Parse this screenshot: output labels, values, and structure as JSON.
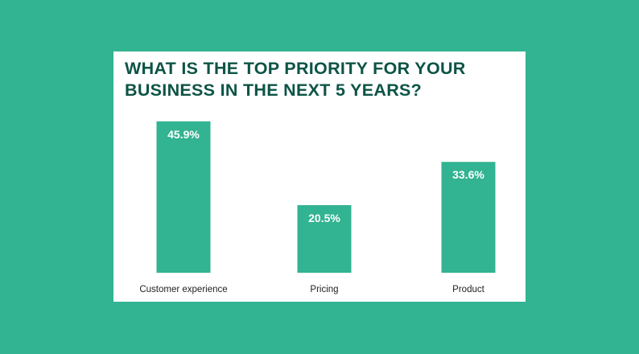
{
  "colors": {
    "background": "#32b391",
    "bar": "#32b391",
    "title": "#0d5446"
  },
  "chart_data": {
    "type": "bar",
    "title": "WHAT IS THE TOP PRIORITY FOR YOUR BUSINESS IN THE NEXT 5 YEARS?",
    "categories": [
      "Customer experience",
      "Pricing",
      "Product"
    ],
    "values": [
      45.9,
      20.5,
      33.6
    ],
    "data_labels": [
      "45.9%",
      "20.5%",
      "33.6%"
    ],
    "unit": "%",
    "ylim": [
      0,
      50
    ],
    "grid": false,
    "legend": "none"
  }
}
